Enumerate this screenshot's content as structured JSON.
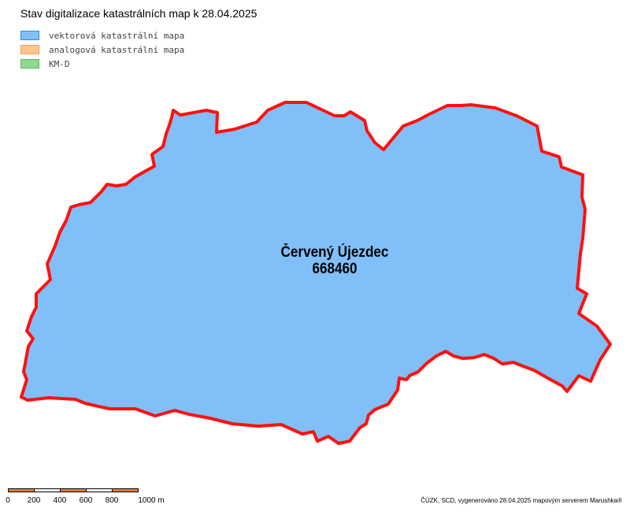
{
  "title": "Stav digitalizace katastrálních map k 28.04.2025",
  "legend": {
    "items": [
      {
        "label": "vektorová katastrální mapa",
        "fill": "#80bff8",
        "stroke": "#2f8ed8"
      },
      {
        "label": "analogová katastrální mapa",
        "fill": "#ffc68c",
        "stroke": "#f0a050"
      },
      {
        "label": "KM-D",
        "fill": "#90d890",
        "stroke": "#60b860"
      }
    ]
  },
  "region": {
    "name": "Červený Újezdec",
    "code": "668460",
    "fill": "#80bff8",
    "border_color": "#ff1010"
  },
  "scalebar": {
    "ticks": [
      "0",
      "200",
      "400",
      "600",
      "800",
      "1000 m"
    ],
    "colors": [
      "#e08040",
      "#ffffff",
      "#e08040",
      "#ffffff",
      "#e08040"
    ]
  },
  "credit": "ČÚZK, SCD, vygenerováno 28.04.2025 mapovým serverem Marushka®"
}
